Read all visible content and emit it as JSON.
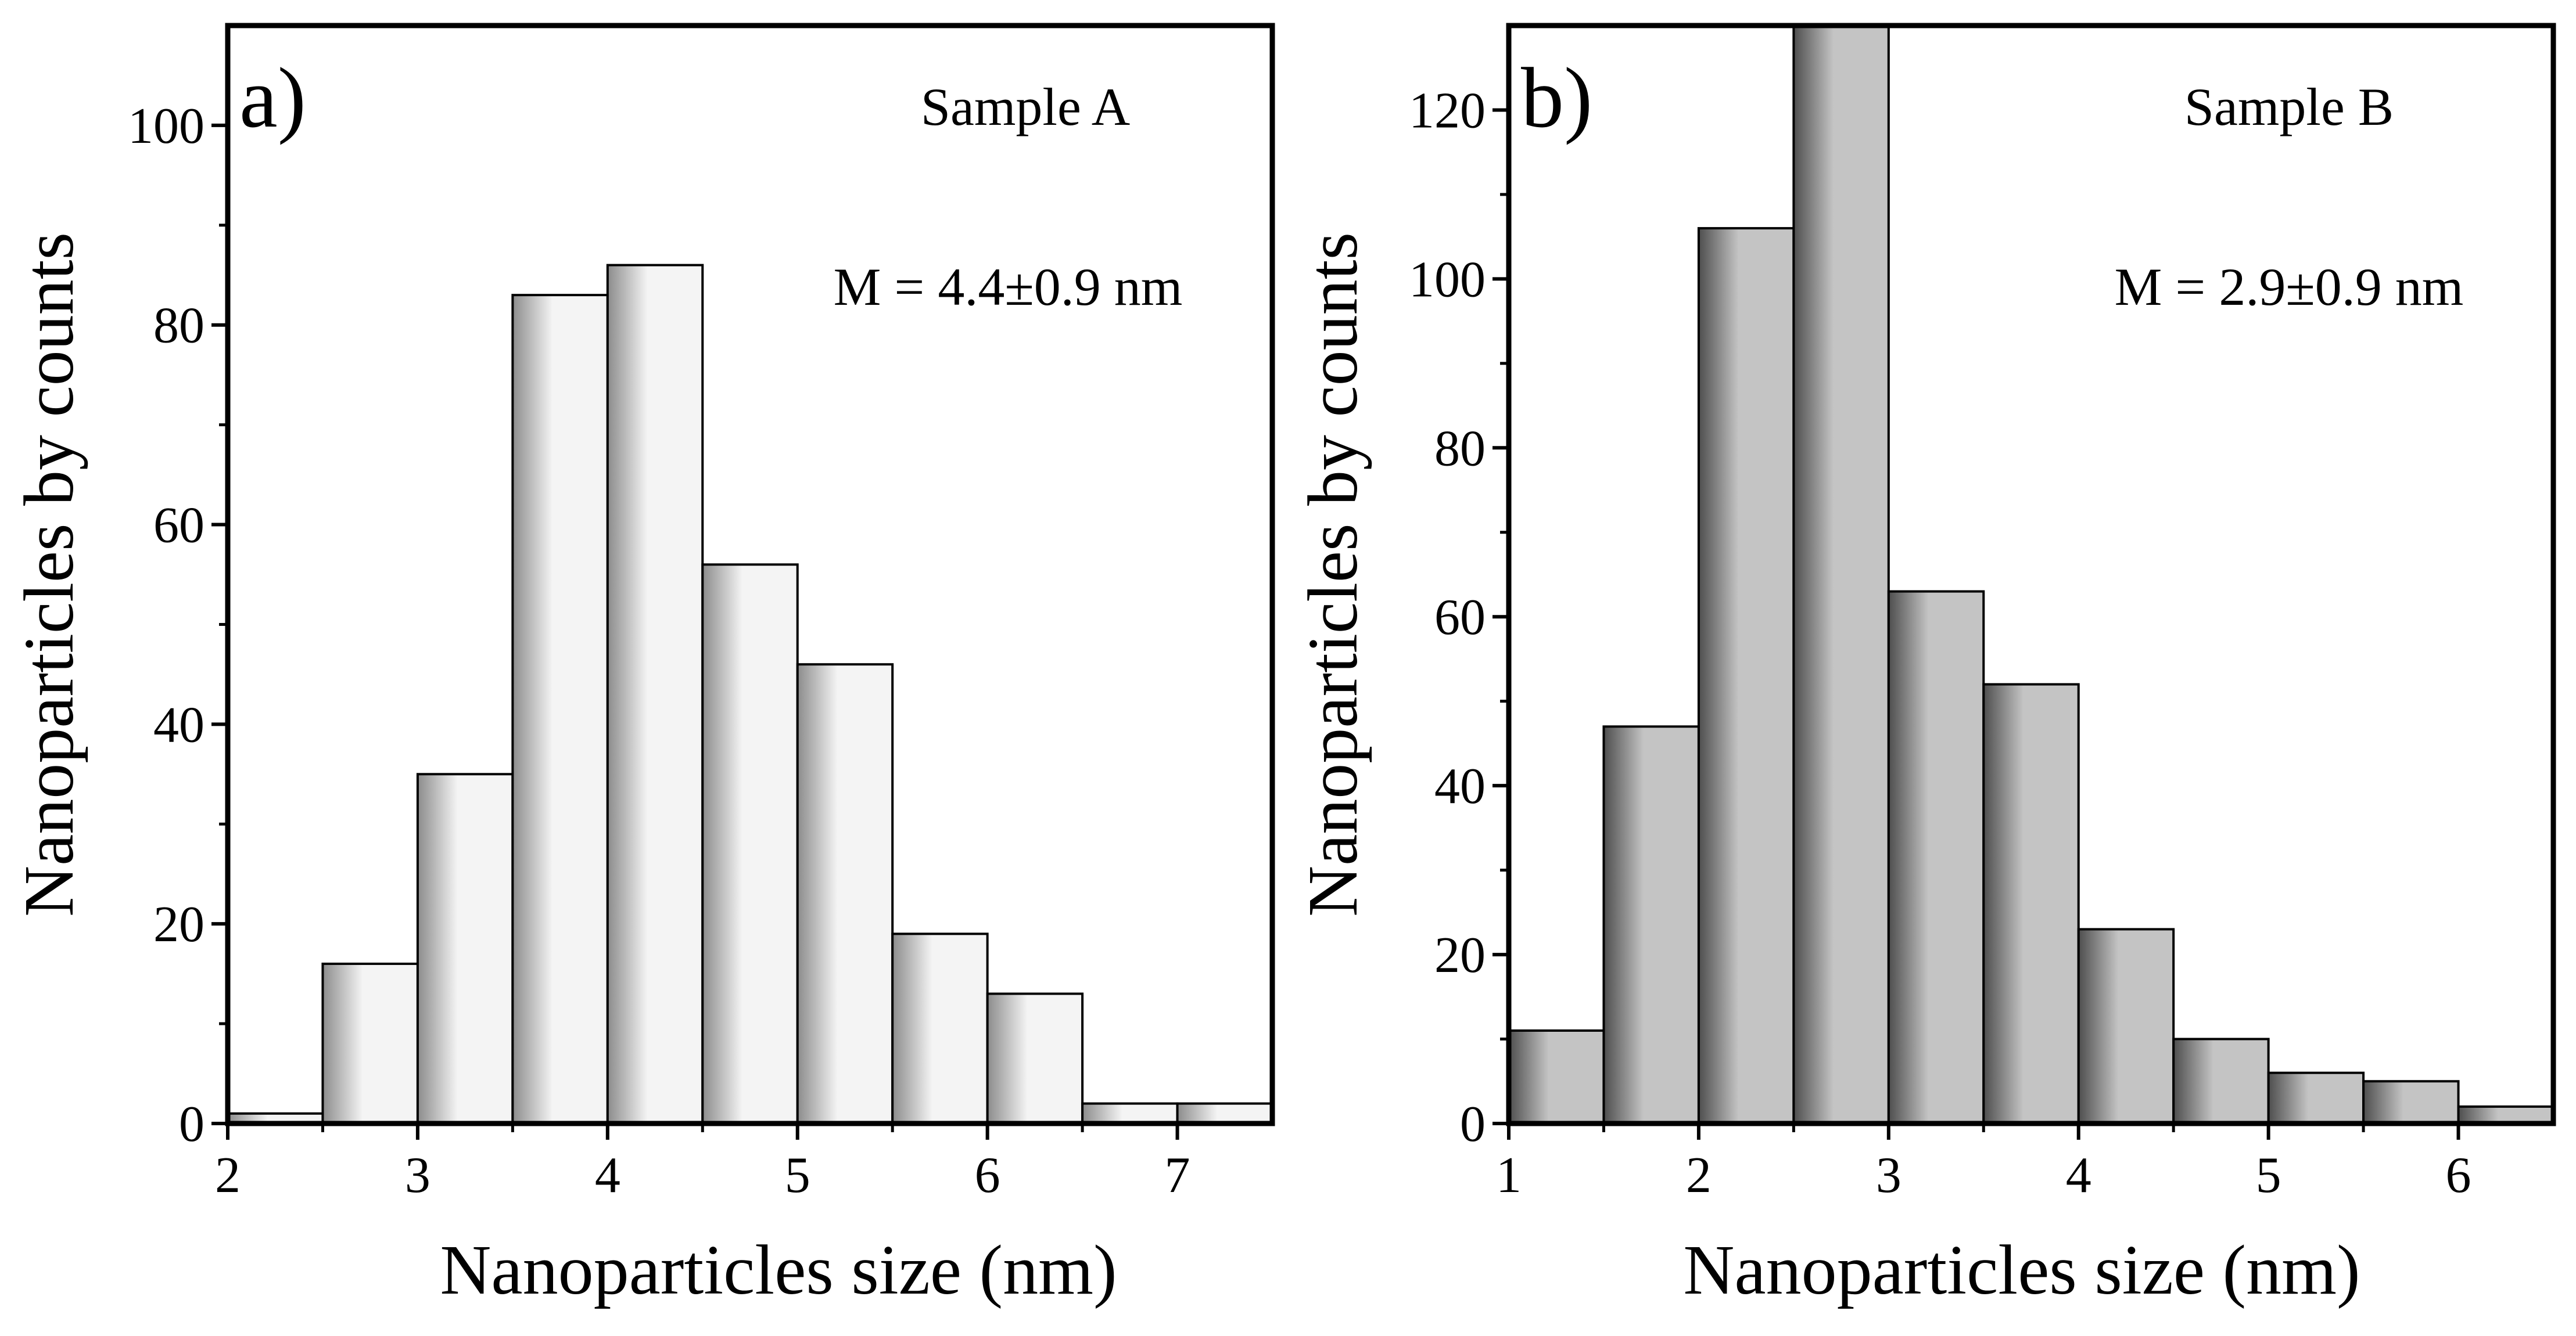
{
  "chart_data": [
    {
      "type": "bar",
      "panel_label": "a)",
      "title": "Sample A",
      "annotation": "M = 4.4±0.9 nm",
      "xlabel": "Nanoparticles size (nm)",
      "ylabel": "Nanoparticles by counts",
      "xlim": [
        2,
        7.5
      ],
      "ylim": [
        0,
        110
      ],
      "xticks": [
        2,
        3,
        4,
        5,
        6,
        7
      ],
      "yticks": [
        0,
        20,
        40,
        60,
        80,
        100
      ],
      "bin_width": 0.5,
      "bins": [
        {
          "start": 2.0,
          "value": 1
        },
        {
          "start": 2.5,
          "value": 16
        },
        {
          "start": 3.0,
          "value": 35
        },
        {
          "start": 3.5,
          "value": 83
        },
        {
          "start": 4.0,
          "value": 86
        },
        {
          "start": 4.5,
          "value": 56
        },
        {
          "start": 5.0,
          "value": 46
        },
        {
          "start": 5.5,
          "value": 19
        },
        {
          "start": 6.0,
          "value": 13
        },
        {
          "start": 6.5,
          "value": 2
        },
        {
          "start": 7.0,
          "value": 2
        }
      ],
      "colors": {
        "light": "#f4f4f4",
        "dark": "#8c8c8c"
      }
    },
    {
      "type": "bar",
      "panel_label": "b)",
      "title": "Sample B",
      "annotation": "M = 2.9±0.9 nm",
      "xlabel": "Nanoparticles size (nm)",
      "ylabel": "Nanoparticles by counts",
      "xlim": [
        1,
        6.5
      ],
      "ylim": [
        0,
        130
      ],
      "xticks": [
        1,
        2,
        3,
        4,
        5,
        6
      ],
      "yticks": [
        0,
        20,
        40,
        60,
        80,
        100,
        120
      ],
      "bin_width": 0.5,
      "bins": [
        {
          "start": 1.0,
          "value": 11
        },
        {
          "start": 1.5,
          "value": 47
        },
        {
          "start": 2.0,
          "value": 106
        },
        {
          "start": 2.5,
          "value": 130
        },
        {
          "start": 3.0,
          "value": 63
        },
        {
          "start": 3.5,
          "value": 52
        },
        {
          "start": 4.0,
          "value": 23
        },
        {
          "start": 4.5,
          "value": 10
        },
        {
          "start": 5.0,
          "value": 6
        },
        {
          "start": 5.5,
          "value": 5
        },
        {
          "start": 6.0,
          "value": 2
        }
      ],
      "colors": {
        "light": "#c4c4c4",
        "dark": "#4e4e4e"
      }
    }
  ]
}
